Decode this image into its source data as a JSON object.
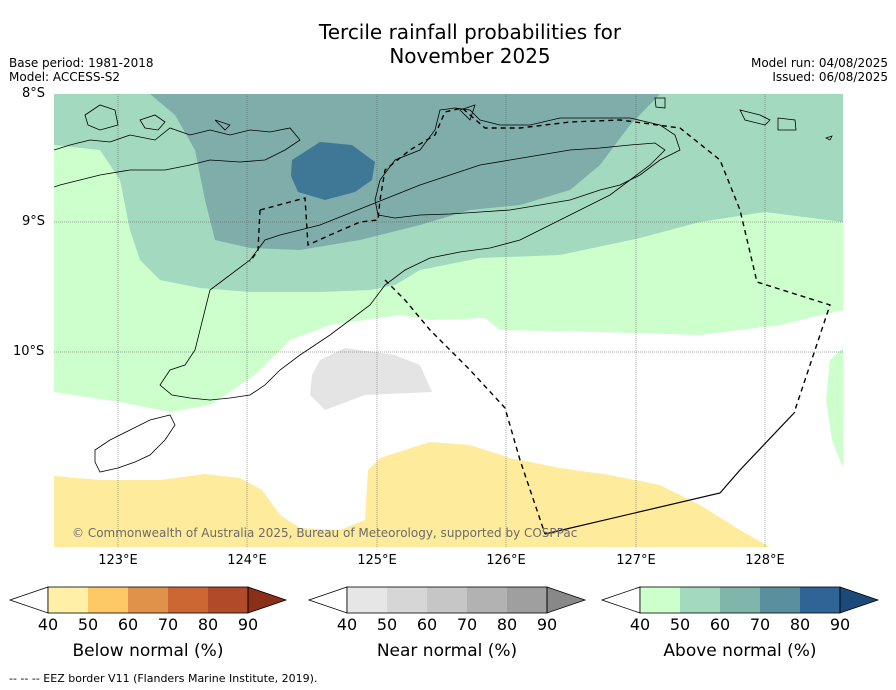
{
  "title_line1": "Tercile rainfall probabilities for",
  "title_line2": "November 2025",
  "meta": {
    "base_period": "Base period: 1981-2018",
    "model": "Model: ACCESS-S2",
    "model_run": "Model run: 04/08/2025",
    "issued": "Issued: 06/08/2025"
  },
  "lat_labels": [
    "8°S",
    "9°S",
    "10°S"
  ],
  "lon_labels": [
    "123°E",
    "124°E",
    "125°E",
    "126°E",
    "127°E",
    "128°E"
  ],
  "copyright": "© Commonwealth of Australia 2025, Bureau of Meteorology, supported by COSPPac",
  "colorbars": [
    {
      "title": "Below normal (%)",
      "ticks": [
        "40",
        "50",
        "60",
        "70",
        "80",
        "90"
      ],
      "colors": [
        "#fff0a8",
        "#fdc966",
        "#e0914a",
        "#cc6633",
        "#b04a28",
        "#8c2f18"
      ]
    },
    {
      "title": "Near normal (%)",
      "ticks": [
        "40",
        "50",
        "60",
        "70",
        "80",
        "90"
      ],
      "colors": [
        "#e6e6e6",
        "#d6d6d6",
        "#c6c6c6",
        "#b2b2b2",
        "#9f9f9f",
        "#888888"
      ]
    },
    {
      "title": "Above normal (%)",
      "ticks": [
        "40",
        "50",
        "60",
        "70",
        "80",
        "90"
      ],
      "colors": [
        "#ccffcc",
        "#a3d9bf",
        "#7fb5ab",
        "#5a8f9e",
        "#2f6496",
        "#1b4a7a"
      ]
    }
  ],
  "footnote": "--  --  -- EEZ border V11 (Flanders Marine Institute, 2019)."
}
